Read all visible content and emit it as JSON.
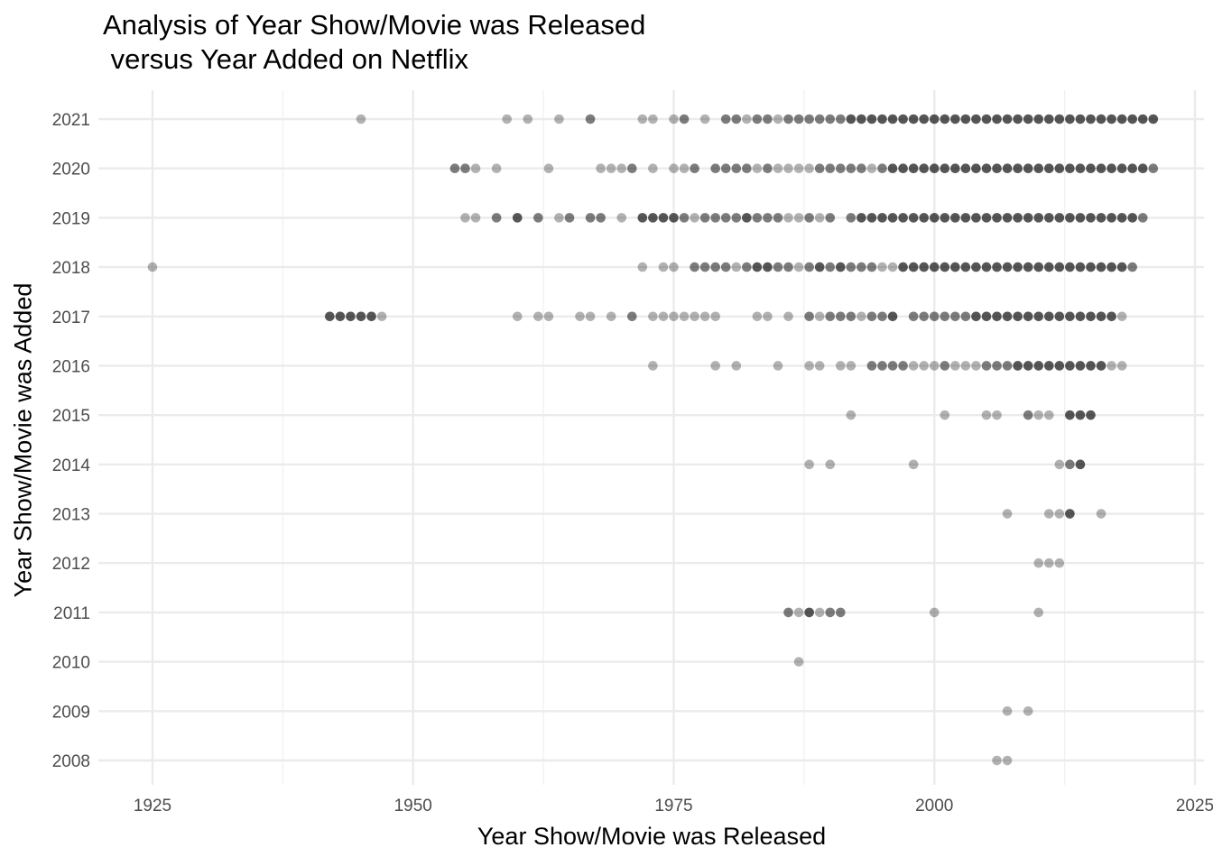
{
  "chart_data": {
    "type": "scatter",
    "title_line1": "Analysis of Year Show/Movie was Released",
    "title_line2": " versus Year Added on Netflix",
    "xlabel": "Year Show/Movie was Released",
    "ylabel": "Year Show/Movie was Added",
    "xlim": [
      1918,
      2026
    ],
    "ylim": [
      2007.5,
      2021.6
    ],
    "x_ticks": [
      1925,
      1950,
      1975,
      2000,
      2025
    ],
    "y_ticks": [
      2008,
      2009,
      2010,
      2011,
      2012,
      2013,
      2014,
      2015,
      2016,
      2017,
      2018,
      2019,
      2020,
      2021
    ],
    "point_color": "#000000",
    "point_alpha": 0.3,
    "grid": true,
    "rows": [
      {
        "added": 2021,
        "released": [
          1945,
          1959,
          1961,
          1964,
          1967,
          1967,
          1972,
          1973,
          1975,
          1976,
          1976,
          1978,
          1980,
          1980,
          1981,
          1981,
          1982,
          1983,
          1983,
          1984,
          1984,
          1985,
          1986,
          1986,
          1987,
          1987,
          1988,
          1988,
          1989,
          1989,
          1990,
          1990,
          1991,
          1991,
          1992,
          1992,
          1992,
          1993,
          1993,
          1993,
          1994,
          1994,
          1994,
          1995,
          1995,
          1995,
          1996,
          1996,
          1996,
          1997,
          1997,
          1997,
          1998,
          1998,
          1998,
          1999,
          1999,
          1999,
          2000,
          2000,
          2000,
          2001,
          2001,
          2001,
          2002,
          2002,
          2002,
          2003,
          2003,
          2003,
          2004,
          2004,
          2004,
          2005,
          2005,
          2005,
          2006,
          2006,
          2006,
          2007,
          2007,
          2007,
          2008,
          2008,
          2008,
          2009,
          2009,
          2009,
          2010,
          2010,
          2010,
          2011,
          2011,
          2011,
          2012,
          2012,
          2012,
          2013,
          2013,
          2013,
          2014,
          2014,
          2014,
          2015,
          2015,
          2015,
          2016,
          2016,
          2016,
          2017,
          2017,
          2017,
          2018,
          2018,
          2018,
          2019,
          2019,
          2019,
          2020,
          2020,
          2020,
          2021,
          2021,
          2021
        ]
      },
      {
        "added": 2020,
        "released": [
          1954,
          1954,
          1955,
          1955,
          1956,
          1958,
          1963,
          1968,
          1969,
          1970,
          1971,
          1971,
          1973,
          1975,
          1976,
          1977,
          1977,
          1979,
          1979,
          1980,
          1980,
          1981,
          1981,
          1982,
          1982,
          1983,
          1984,
          1984,
          1985,
          1986,
          1987,
          1988,
          1989,
          1989,
          1990,
          1990,
          1991,
          1991,
          1992,
          1992,
          1993,
          1993,
          1994,
          1995,
          1995,
          1996,
          1996,
          1996,
          1997,
          1997,
          1997,
          1998,
          1998,
          1998,
          1999,
          1999,
          1999,
          2000,
          2000,
          2000,
          2001,
          2001,
          2001,
          2002,
          2002,
          2002,
          2003,
          2003,
          2003,
          2004,
          2004,
          2004,
          2005,
          2005,
          2005,
          2006,
          2006,
          2006,
          2007,
          2007,
          2007,
          2008,
          2008,
          2008,
          2009,
          2009,
          2009,
          2010,
          2010,
          2010,
          2011,
          2011,
          2011,
          2012,
          2012,
          2012,
          2013,
          2013,
          2013,
          2014,
          2014,
          2014,
          2015,
          2015,
          2015,
          2016,
          2016,
          2016,
          2017,
          2017,
          2017,
          2018,
          2018,
          2018,
          2019,
          2019,
          2019,
          2020,
          2020,
          2020,
          2021,
          2021
        ]
      },
      {
        "added": 2019,
        "released": [
          1955,
          1956,
          1958,
          1958,
          1960,
          1960,
          1960,
          1962,
          1962,
          1964,
          1965,
          1965,
          1967,
          1967,
          1968,
          1968,
          1970,
          1972,
          1972,
          1972,
          1973,
          1973,
          1973,
          1974,
          1974,
          1974,
          1975,
          1975,
          1975,
          1976,
          1976,
          1977,
          1978,
          1978,
          1979,
          1979,
          1980,
          1980,
          1981,
          1981,
          1982,
          1982,
          1982,
          1983,
          1983,
          1984,
          1984,
          1985,
          1985,
          1986,
          1987,
          1988,
          1988,
          1989,
          1990,
          1990,
          1992,
          1992,
          1993,
          1993,
          1993,
          1994,
          1994,
          1994,
          1995,
          1995,
          1995,
          1996,
          1996,
          1996,
          1997,
          1997,
          1997,
          1998,
          1998,
          1998,
          1999,
          1999,
          1999,
          2000,
          2000,
          2000,
          2001,
          2001,
          2001,
          2002,
          2002,
          2002,
          2003,
          2003,
          2003,
          2004,
          2004,
          2004,
          2005,
          2005,
          2005,
          2006,
          2006,
          2006,
          2007,
          2007,
          2007,
          2008,
          2008,
          2008,
          2009,
          2009,
          2009,
          2010,
          2010,
          2010,
          2011,
          2011,
          2011,
          2012,
          2012,
          2012,
          2013,
          2013,
          2013,
          2014,
          2014,
          2014,
          2015,
          2015,
          2015,
          2016,
          2016,
          2016,
          2017,
          2017,
          2017,
          2018,
          2018,
          2018,
          2019,
          2019,
          2019,
          2020,
          2020
        ]
      },
      {
        "added": 2018,
        "released": [
          1925,
          1972,
          1974,
          1975,
          1977,
          1977,
          1978,
          1978,
          1979,
          1979,
          1980,
          1980,
          1981,
          1982,
          1982,
          1983,
          1983,
          1983,
          1984,
          1984,
          1984,
          1985,
          1985,
          1986,
          1986,
          1987,
          1988,
          1988,
          1989,
          1989,
          1989,
          1990,
          1990,
          1991,
          1991,
          1991,
          1992,
          1992,
          1993,
          1993,
          1994,
          1994,
          1995,
          1996,
          1997,
          1997,
          1997,
          1998,
          1998,
          1998,
          1999,
          1999,
          1999,
          2000,
          2000,
          2000,
          2001,
          2001,
          2001,
          2002,
          2002,
          2002,
          2003,
          2003,
          2003,
          2004,
          2004,
          2004,
          2005,
          2005,
          2005,
          2006,
          2006,
          2006,
          2007,
          2007,
          2007,
          2008,
          2008,
          2008,
          2009,
          2009,
          2009,
          2010,
          2010,
          2010,
          2011,
          2011,
          2011,
          2012,
          2012,
          2012,
          2013,
          2013,
          2013,
          2014,
          2014,
          2014,
          2015,
          2015,
          2015,
          2016,
          2016,
          2016,
          2017,
          2017,
          2017,
          2018,
          2018,
          2018,
          2019,
          2019
        ]
      },
      {
        "added": 2017,
        "released": [
          1942,
          1942,
          1942,
          1943,
          1943,
          1943,
          1944,
          1944,
          1944,
          1945,
          1945,
          1945,
          1946,
          1946,
          1946,
          1947,
          1960,
          1962,
          1963,
          1966,
          1967,
          1969,
          1971,
          1971,
          1973,
          1974,
          1975,
          1976,
          1977,
          1978,
          1979,
          1983,
          1984,
          1986,
          1988,
          1988,
          1989,
          1990,
          1990,
          1991,
          1991,
          1992,
          1992,
          1993,
          1994,
          1994,
          1995,
          1995,
          1996,
          1996,
          1996,
          1998,
          1998,
          1999,
          1999,
          2000,
          2000,
          2001,
          2001,
          2002,
          2002,
          2003,
          2003,
          2004,
          2004,
          2004,
          2005,
          2005,
          2005,
          2006,
          2006,
          2006,
          2007,
          2007,
          2007,
          2008,
          2008,
          2008,
          2009,
          2009,
          2009,
          2010,
          2010,
          2010,
          2011,
          2011,
          2011,
          2012,
          2012,
          2012,
          2013,
          2013,
          2013,
          2014,
          2014,
          2014,
          2015,
          2015,
          2015,
          2016,
          2016,
          2016,
          2017,
          2017,
          2017,
          2018
        ]
      },
      {
        "added": 2016,
        "released": [
          1973,
          1979,
          1981,
          1985,
          1988,
          1989,
          1991,
          1992,
          1994,
          1994,
          1995,
          1995,
          1996,
          1996,
          1997,
          1997,
          1998,
          1999,
          2000,
          2001,
          2001,
          2002,
          2003,
          2004,
          2005,
          2005,
          2006,
          2006,
          2007,
          2007,
          2008,
          2008,
          2008,
          2009,
          2009,
          2009,
          2010,
          2010,
          2010,
          2011,
          2011,
          2011,
          2012,
          2012,
          2012,
          2013,
          2013,
          2013,
          2014,
          2014,
          2014,
          2015,
          2015,
          2015,
          2016,
          2016,
          2016,
          2017,
          2018
        ]
      },
      {
        "added": 2015,
        "released": [
          1992,
          2001,
          2005,
          2006,
          2009,
          2009,
          2010,
          2011,
          2013,
          2013,
          2013,
          2014,
          2014,
          2014,
          2015,
          2015,
          2015
        ]
      },
      {
        "added": 2014,
        "released": [
          1988,
          1990,
          1998,
          2012,
          2013,
          2013,
          2014,
          2014,
          2014
        ]
      },
      {
        "added": 2013,
        "released": [
          2007,
          2011,
          2012,
          2013,
          2013,
          2013,
          2016
        ]
      },
      {
        "added": 2012,
        "released": [
          2010,
          2011,
          2012
        ]
      },
      {
        "added": 2011,
        "released": [
          1986,
          1986,
          1987,
          1988,
          1988,
          1988,
          1989,
          1990,
          1990,
          1991,
          1991,
          2000,
          2010
        ]
      },
      {
        "added": 2010,
        "released": [
          1987
        ]
      },
      {
        "added": 2009,
        "released": [
          2007,
          2009
        ]
      },
      {
        "added": 2008,
        "released": [
          2006,
          2007
        ]
      }
    ]
  }
}
